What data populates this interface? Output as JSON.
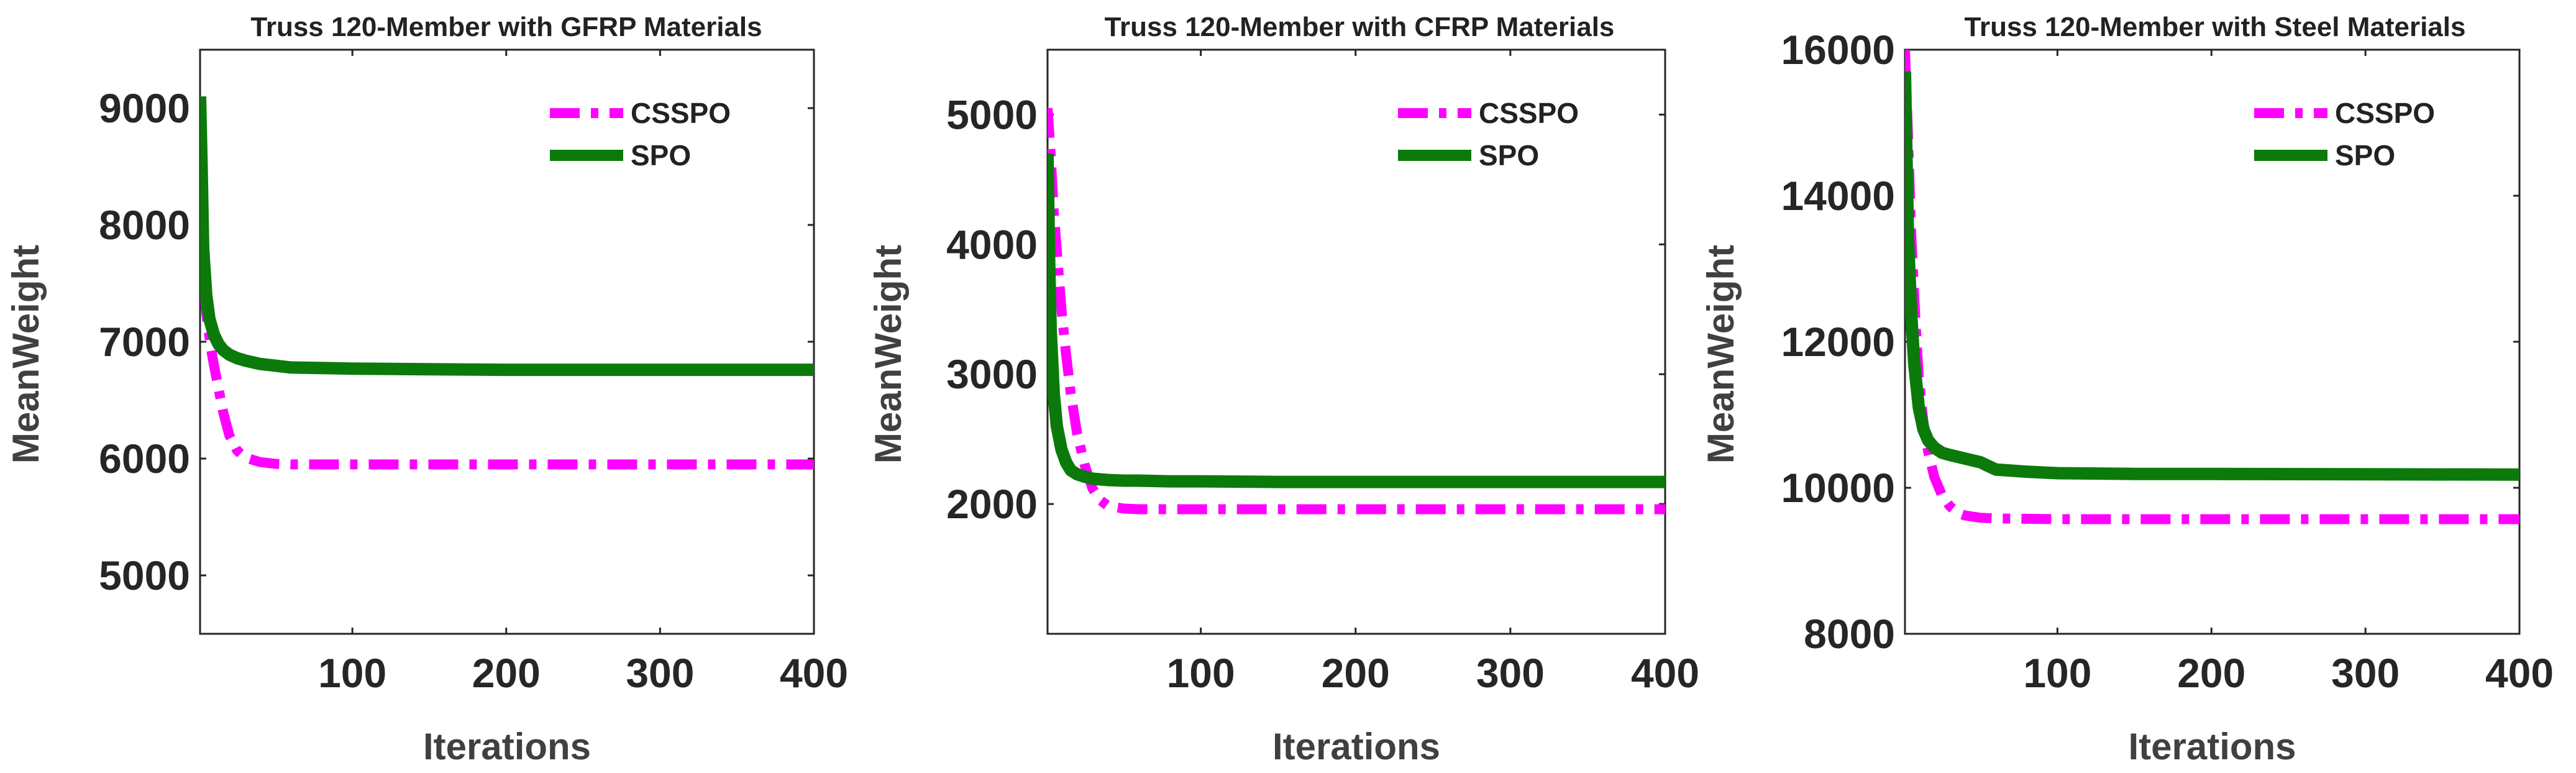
{
  "chart_data": [
    {
      "type": "line",
      "title": "Truss 120-Member with GFRP Materials",
      "xlabel": "Iterations",
      "ylabel": "MeanWeight",
      "xlim": [
        1,
        400
      ],
      "ylim": [
        4500,
        9500
      ],
      "xticks": [
        100,
        200,
        300,
        400
      ],
      "yticks": [
        5000,
        6000,
        7000,
        8000,
        9000
      ],
      "legend_position": "top-right",
      "series": [
        {
          "name": "CSSPO",
          "color": "#ff00ff",
          "style": "dash-dot",
          "x": [
            1,
            3,
            5,
            8,
            10,
            13,
            16,
            20,
            25,
            30,
            40,
            50,
            60,
            80,
            100,
            150,
            200,
            300,
            400
          ],
          "y": [
            8450,
            7600,
            7250,
            6950,
            6800,
            6600,
            6400,
            6200,
            6070,
            6010,
            5970,
            5955,
            5950,
            5950,
            5950,
            5950,
            5950,
            5950,
            5950
          ]
        },
        {
          "name": "SPO",
          "color": "#0b7a0b",
          "style": "solid",
          "x": [
            1,
            2,
            3,
            5,
            7,
            10,
            13,
            16,
            20,
            25,
            30,
            40,
            50,
            60,
            80,
            100,
            150,
            200,
            300,
            400
          ],
          "y": [
            9100,
            8500,
            7800,
            7400,
            7200,
            7060,
            6980,
            6930,
            6890,
            6860,
            6840,
            6810,
            6795,
            6780,
            6775,
            6770,
            6765,
            6760,
            6760,
            6760
          ]
        }
      ]
    },
    {
      "type": "line",
      "title": "Truss 120-Member with CFRP Materials",
      "xlabel": "Iterations",
      "ylabel": "MeanWeight",
      "xlim": [
        1,
        400
      ],
      "ylim": [
        1000,
        5500
      ],
      "xticks": [
        100,
        200,
        300,
        400
      ],
      "yticks": [
        2000,
        3000,
        4000,
        5000
      ],
      "legend_position": "top-right",
      "series": [
        {
          "name": "CSSPO",
          "color": "#ff00ff",
          "style": "dash-dot",
          "x": [
            1,
            3,
            5,
            8,
            10,
            13,
            16,
            20,
            25,
            30,
            35,
            40,
            50,
            60,
            80,
            100,
            150,
            200,
            300,
            400
          ],
          "y": [
            5050,
            4700,
            4250,
            3800,
            3500,
            3150,
            2850,
            2550,
            2300,
            2120,
            2030,
            1985,
            1965,
            1960,
            1960,
            1960,
            1960,
            1960,
            1960,
            1960
          ]
        },
        {
          "name": "SPO",
          "color": "#0b7a0b",
          "style": "solid",
          "x": [
            1,
            2,
            3,
            5,
            7,
            10,
            13,
            16,
            20,
            25,
            30,
            40,
            50,
            60,
            80,
            100,
            150,
            200,
            300,
            400
          ],
          "y": [
            4700,
            3900,
            3350,
            2850,
            2600,
            2420,
            2320,
            2260,
            2230,
            2210,
            2195,
            2185,
            2180,
            2180,
            2175,
            2175,
            2170,
            2170,
            2170,
            2170
          ]
        }
      ]
    },
    {
      "type": "line",
      "title": "Truss 120-Member with Steel Materials",
      "xlabel": "Iterations",
      "ylabel": "MeanWeight",
      "xlim": [
        1,
        400
      ],
      "ylim": [
        8000,
        16000
      ],
      "xticks": [
        100,
        200,
        300,
        400
      ],
      "yticks": [
        8000,
        10000,
        12000,
        14000,
        16000
      ],
      "legend_position": "top-right",
      "series": [
        {
          "name": "CSSPO",
          "color": "#ff00ff",
          "style": "dash-dot",
          "x": [
            1,
            3,
            5,
            8,
            10,
            13,
            16,
            20,
            25,
            30,
            35,
            40,
            50,
            60,
            80,
            100,
            150,
            200,
            300,
            400
          ],
          "y": [
            16000,
            14800,
            13500,
            12200,
            11500,
            10900,
            10500,
            10150,
            9900,
            9750,
            9660,
            9620,
            9590,
            9580,
            9575,
            9570,
            9570,
            9570,
            9570,
            9570
          ]
        },
        {
          "name": "SPO",
          "color": "#0b7a0b",
          "style": "solid",
          "x": [
            1,
            2,
            3,
            5,
            7,
            10,
            13,
            16,
            20,
            25,
            30,
            40,
            50,
            55,
            60,
            80,
            100,
            150,
            200,
            300,
            400
          ],
          "y": [
            15700,
            14500,
            13400,
            12400,
            11700,
            11100,
            10800,
            10650,
            10550,
            10480,
            10450,
            10400,
            10350,
            10300,
            10250,
            10220,
            10200,
            10190,
            10190,
            10185,
            10180
          ]
        }
      ]
    }
  ]
}
